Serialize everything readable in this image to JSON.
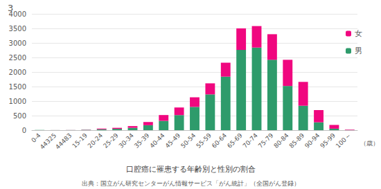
{
  "chart_data": {
    "type": "bar",
    "title": "口腔癌に罹患する年齢別と性別の割合",
    "subtitle": "出典：国立がん研究センターがん情報サービス「がん統計」（全国がん登録）",
    "annotations": [
      "3"
    ],
    "x_label": "（歳）",
    "categories": [
      "0-4",
      "44325",
      "44483",
      "15-19",
      "20-24",
      "25-29",
      "30-34",
      "35-39",
      "40-44",
      "45-49",
      "50-54",
      "55-59",
      "60-64",
      "65-69",
      "70-74",
      "75-79",
      "80-84",
      "85-89",
      "90-94",
      "95-99",
      "100～"
    ],
    "series": [
      {
        "name": "男",
        "color": "#2e9b6b",
        "values": [
          3,
          2,
          3,
          10,
          30,
          45,
          80,
          170,
          320,
          520,
          800,
          1230,
          1840,
          2760,
          2840,
          2420,
          1520,
          840,
          270,
          50,
          5
        ]
      },
      {
        "name": "女",
        "color": "#f0077f",
        "values": [
          2,
          1,
          2,
          8,
          25,
          35,
          60,
          110,
          200,
          260,
          330,
          380,
          480,
          740,
          740,
          880,
          900,
          820,
          420,
          130,
          15
        ]
      }
    ],
    "stacked": true,
    "ylim": [
      0,
      4000
    ],
    "yticks": [
      0,
      500,
      1000,
      1500,
      2000,
      2500,
      3000,
      3500,
      4000
    ],
    "grid": true,
    "legend": "right"
  }
}
